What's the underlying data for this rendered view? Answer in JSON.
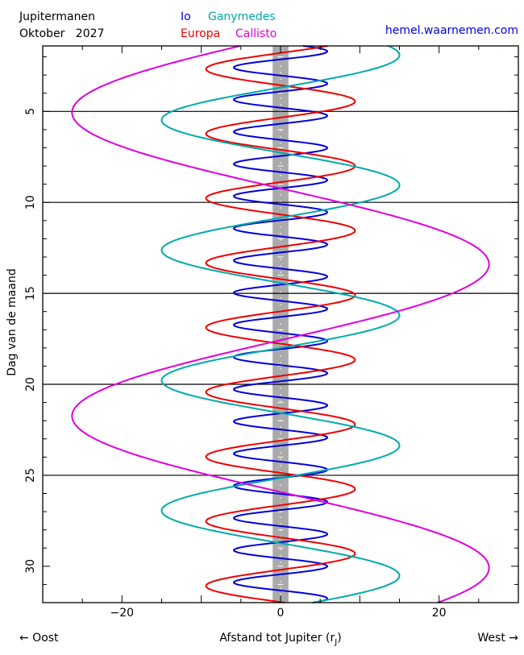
{
  "header": {
    "title": "Jupitermanen",
    "month_year": "Oktober   2027",
    "site": "hemel.waarnemen.com"
  },
  "colors": {
    "io": "#0000dd",
    "europa": "#ee0000",
    "ganymedes": "#00aaaa",
    "callisto": "#dd00dd",
    "jupiter_band": "#aaaaaa"
  },
  "axis": {
    "xlabel_left": "← Oost",
    "xlabel_center_main": "Afstand tot Jupiter (r",
    "xlabel_center_sub": "J",
    "xlabel_center_close": ")",
    "xlabel_right": "West →",
    "ylabel": "Dag van de maand"
  },
  "chart_data": {
    "type": "line",
    "xlim": [
      -30,
      30
    ],
    "ylim": [
      1.4,
      32
    ],
    "y_inverted": true,
    "x_ticks": [
      -20,
      0,
      20
    ],
    "y_ticks": [
      5,
      10,
      15,
      20,
      25,
      30
    ],
    "day_lines": [
      5,
      10,
      15,
      20,
      25
    ],
    "jupiter_band_halfwidth": 1,
    "series": [
      {
        "name": "Io",
        "amplitude": 5.9,
        "period_days": 1.769,
        "phase_ref_day": 1.7,
        "phase_ref_sign": 1
      },
      {
        "name": "Europa",
        "amplitude": 9.4,
        "period_days": 3.551,
        "phase_ref_day": 4.45,
        "phase_ref_sign": 1
      },
      {
        "name": "Ganymedes",
        "amplitude": 15.0,
        "period_days": 7.155,
        "phase_ref_day": 1.9,
        "phase_ref_sign": 1
      },
      {
        "name": "Callisto",
        "amplitude": 26.3,
        "period_days": 16.689,
        "phase_ref_day": 13.4,
        "phase_ref_sign": 1
      }
    ]
  }
}
